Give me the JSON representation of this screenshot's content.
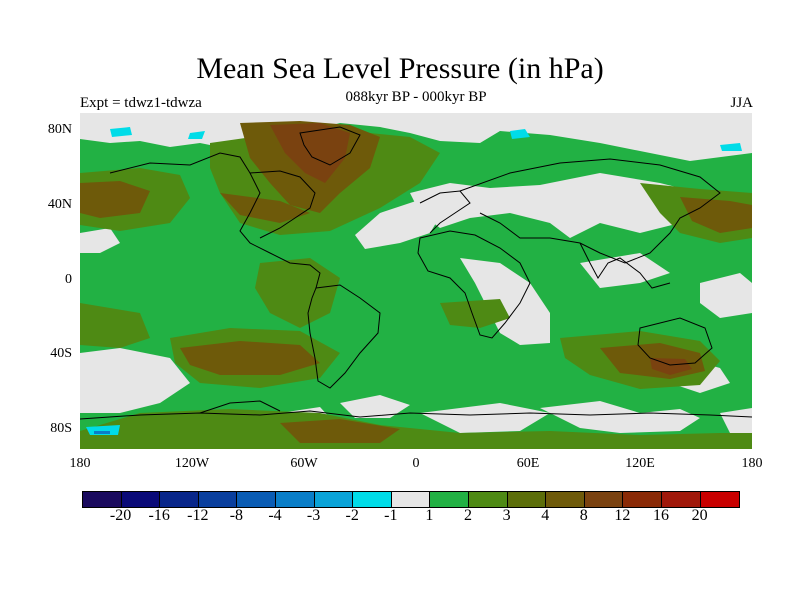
{
  "title": "Mean Sea Level Pressure (in hPa)",
  "subtitle": "088kyr BP - 000kyr BP",
  "experiment": "Expt = tdwz1-tdwza",
  "season": "JJA",
  "lat_ticks": [
    "80N",
    "40N",
    "0",
    "40S",
    "80S"
  ],
  "lon_ticks": [
    "180",
    "120W",
    "60W",
    "0",
    "60E",
    "120E",
    "180"
  ],
  "colorbar": {
    "colors": [
      "#1a0a5e",
      "#0a0a78",
      "#08268a",
      "#0a3f9e",
      "#0a5cb4",
      "#0a7ec8",
      "#0aa3d8",
      "#00dce8",
      "#e6e6e6",
      "#22b144",
      "#4e8a14",
      "#5c6e0a",
      "#6e5a0a",
      "#7a4210",
      "#8a2a06",
      "#a0180a",
      "#c80000"
    ],
    "labels": [
      "-20",
      "-16",
      "-12",
      "-8",
      "-4",
      "-3",
      "-2",
      "-1",
      "1",
      "2",
      "3",
      "4",
      "8",
      "12",
      "16",
      "20"
    ]
  }
}
